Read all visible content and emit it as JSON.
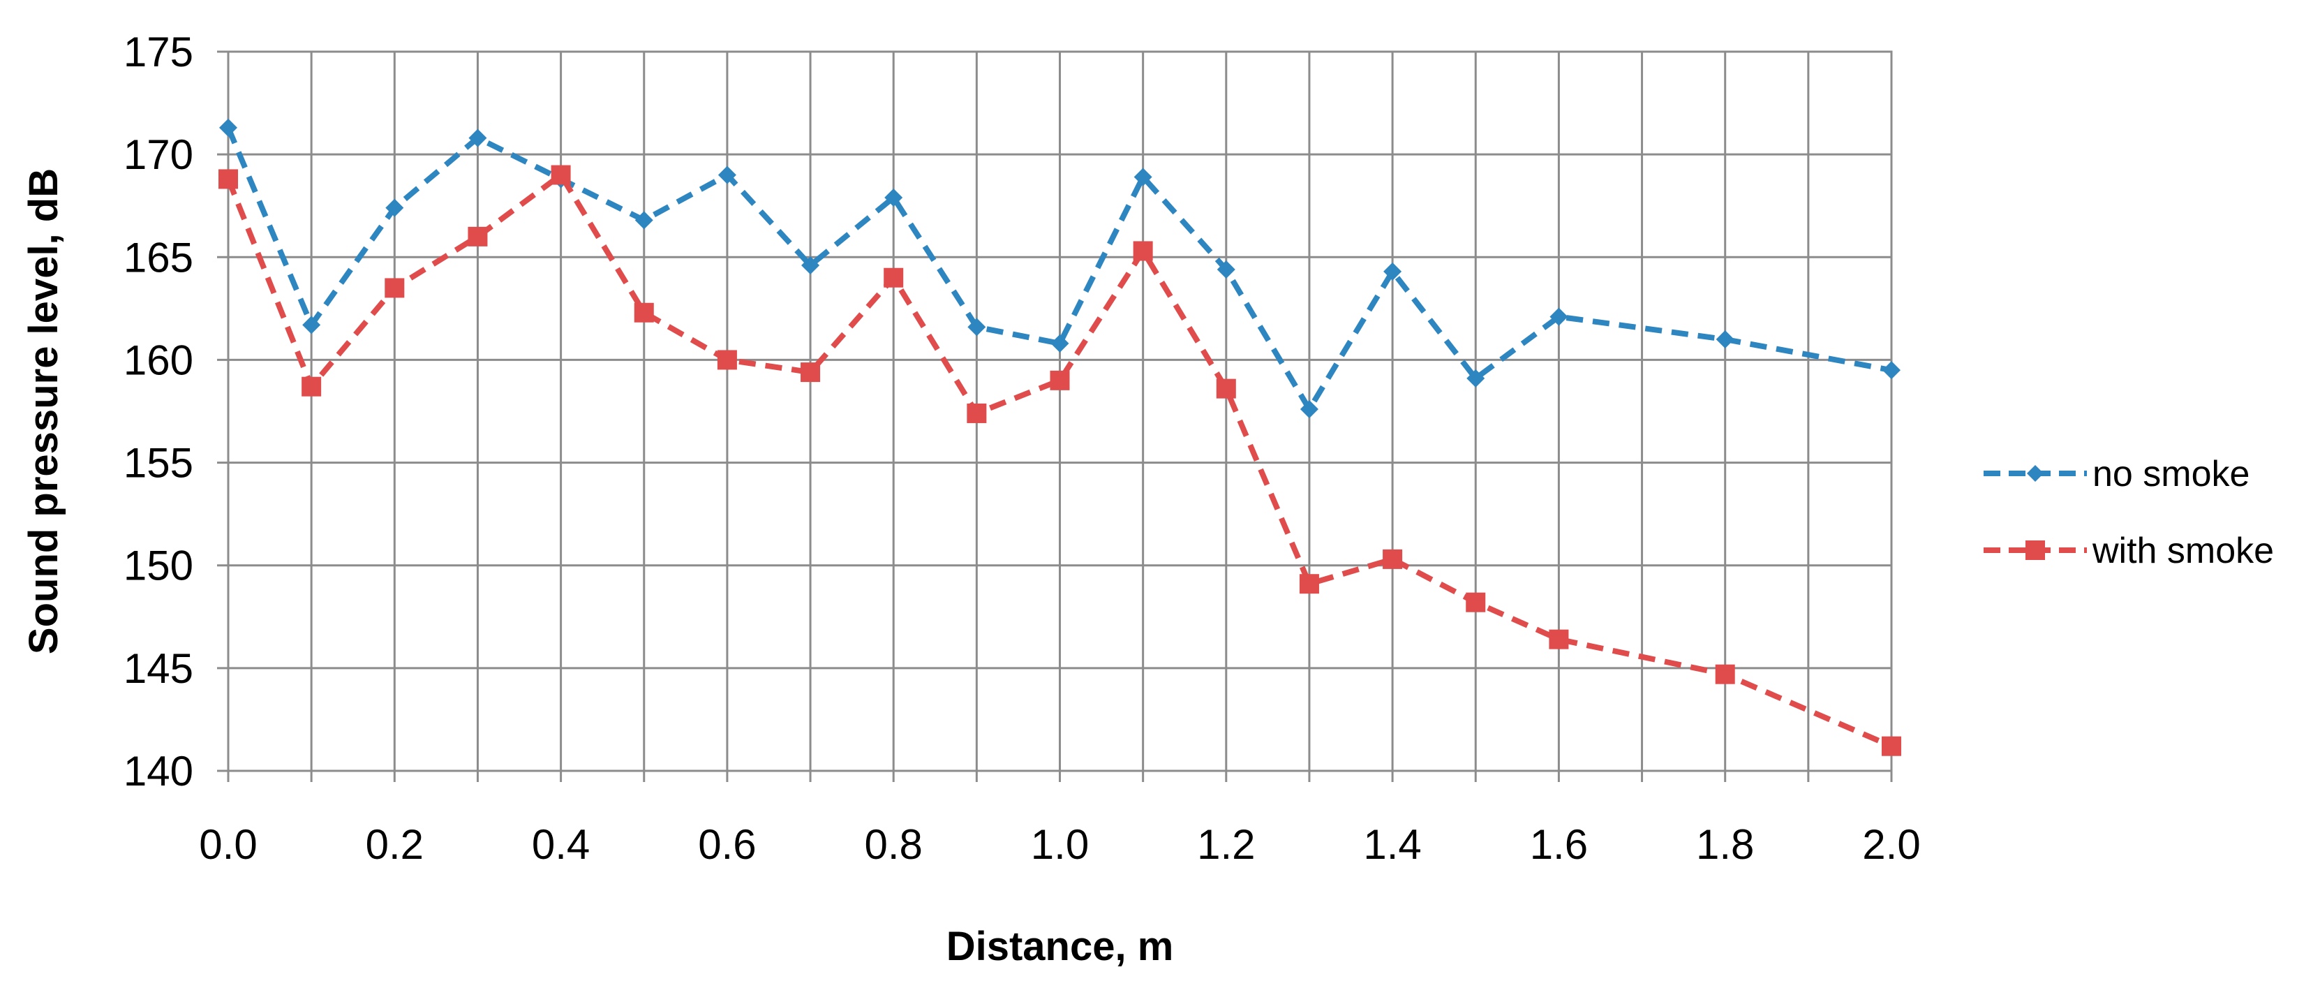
{
  "chart_data": {
    "type": "line",
    "title": "",
    "xlabel": "Distance, m",
    "ylabel": "Sound pressure level, dB",
    "xlim": [
      0,
      2
    ],
    "ylim": [
      140,
      175
    ],
    "x_ticks": [
      "0.0",
      "0.2",
      "0.4",
      "0.6",
      "0.8",
      "1.0",
      "1.2",
      "1.4",
      "1.6",
      "1.8",
      "2.0"
    ],
    "y_ticks": [
      "140",
      "145",
      "150",
      "155",
      "160",
      "165",
      "170",
      "175"
    ],
    "grid": true,
    "legend_position": "right",
    "series": [
      {
        "name": "no smoke",
        "color": "#2E86C1",
        "marker": "diamond",
        "line_style": "dashed",
        "x": [
          0.0,
          0.1,
          0.2,
          0.3,
          0.4,
          0.5,
          0.6,
          0.7,
          0.8,
          0.9,
          1.0,
          1.1,
          1.2,
          1.3,
          1.4,
          1.5,
          1.6,
          1.8,
          2.0
        ],
        "y": [
          171.3,
          161.7,
          167.4,
          170.8,
          168.8,
          166.8,
          169.0,
          164.6,
          167.9,
          161.6,
          160.8,
          168.9,
          164.4,
          157.6,
          164.3,
          159.1,
          162.1,
          161.0,
          159.5
        ]
      },
      {
        "name": "with smoke",
        "color": "#E04B4B",
        "marker": "square",
        "line_style": "dashed",
        "x": [
          0.0,
          0.1,
          0.2,
          0.3,
          0.4,
          0.5,
          0.6,
          0.7,
          0.8,
          0.9,
          1.0,
          1.1,
          1.2,
          1.3,
          1.4,
          1.5,
          1.6,
          1.8,
          2.0
        ],
        "y": [
          168.8,
          158.7,
          163.5,
          166.0,
          169.0,
          162.3,
          160.0,
          159.4,
          164.0,
          157.4,
          159.0,
          165.3,
          158.6,
          149.1,
          150.3,
          148.2,
          146.4,
          144.7,
          141.2
        ]
      }
    ]
  }
}
